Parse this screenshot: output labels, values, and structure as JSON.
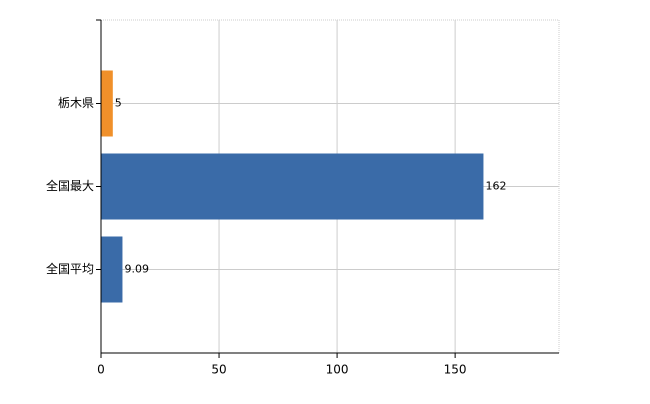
{
  "chart_data": {
    "type": "bar",
    "orientation": "horizontal",
    "categories": [
      "栃木県",
      "全国最大",
      "全国平均"
    ],
    "values": [
      5,
      162,
      9.09
    ],
    "colors": [
      "#f0902a",
      "#3a6ba8",
      "#3a6ba8"
    ],
    "xlim": [
      0,
      194
    ],
    "xticks": [
      0,
      50,
      100,
      150
    ],
    "grid": true
  }
}
